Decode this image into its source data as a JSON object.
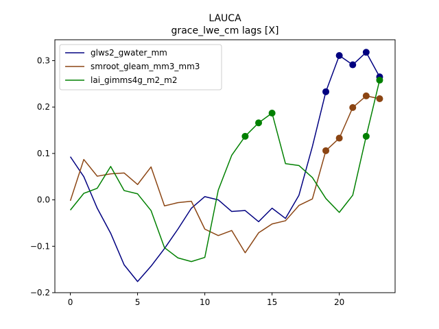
{
  "chart_data": {
    "type": "line",
    "title": "LAUCA",
    "subtitle": "grace_lwe_cm lags [X]",
    "xlabel": "",
    "ylabel": "",
    "xlim": [
      -1.15,
      24.15
    ],
    "ylim": [
      -0.2,
      0.345
    ],
    "xticks": [
      0,
      5,
      10,
      15,
      20
    ],
    "xtick_labels": [
      "0",
      "5",
      "10",
      "15",
      "20"
    ],
    "yticks": [
      -0.2,
      -0.1,
      0.0,
      0.1,
      0.2,
      0.3
    ],
    "ytick_labels": [
      "−0.2",
      "−0.1",
      "0.0",
      "0.1",
      "0.2",
      "0.3"
    ],
    "grid": false,
    "legend_position": "top-left",
    "x": [
      0,
      1,
      2,
      3,
      4,
      5,
      6,
      7,
      8,
      9,
      10,
      11,
      12,
      13,
      14,
      15,
      16,
      17,
      18,
      19,
      20,
      21,
      22,
      23
    ],
    "series": [
      {
        "name": "glws2_gwater_mm",
        "color": "#000080",
        "values": [
          0.093,
          0.05,
          -0.018,
          -0.072,
          -0.14,
          -0.176,
          -0.143,
          -0.105,
          -0.063,
          -0.018,
          0.007,
          0.0,
          -0.025,
          -0.023,
          -0.047,
          -0.018,
          -0.04,
          0.01,
          0.115,
          0.233,
          0.311,
          0.291,
          0.318,
          0.265
        ],
        "markers": [
          19,
          20,
          21,
          22,
          23
        ]
      },
      {
        "name": "smroot_gleam_mm3_mm3",
        "color": "#8B4513",
        "values": [
          -0.002,
          0.087,
          0.051,
          0.056,
          0.058,
          0.033,
          0.071,
          -0.013,
          -0.006,
          -0.003,
          -0.063,
          -0.077,
          -0.066,
          -0.114,
          -0.071,
          -0.052,
          -0.045,
          -0.012,
          0.002,
          0.106,
          0.133,
          0.199,
          0.224,
          0.218
        ],
        "markers": [
          19,
          20,
          21,
          22,
          23
        ]
      },
      {
        "name": "lai_gimms4g_m2_m2",
        "color": "#008000",
        "values": [
          -0.022,
          0.014,
          0.025,
          0.072,
          0.02,
          0.013,
          -0.023,
          -0.103,
          -0.125,
          -0.133,
          -0.124,
          0.021,
          0.096,
          0.137,
          0.166,
          0.187,
          0.078,
          0.074,
          0.048,
          0.003,
          -0.027,
          0.01,
          0.137,
          0.258
        ],
        "markers": [
          13,
          14,
          15,
          22,
          23
        ]
      }
    ]
  }
}
